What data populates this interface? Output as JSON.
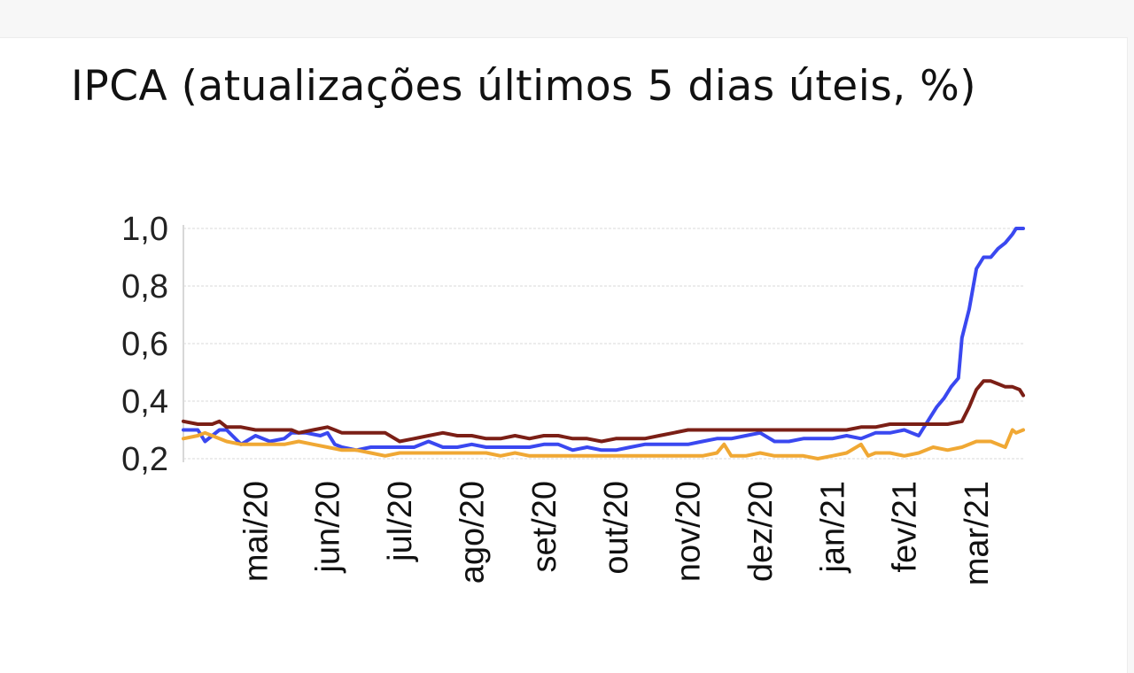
{
  "chart_data": {
    "type": "line",
    "title": "IPCA (atualizações últimos 5 dias úteis, %)",
    "xlabel": "",
    "ylabel": "",
    "ylim": [
      0.2,
      1.0
    ],
    "yticks": [
      "1,0",
      "0,8",
      "0,6",
      "0,4",
      "0,2"
    ],
    "ytick_values": [
      1.0,
      0.8,
      0.6,
      0.4,
      0.2
    ],
    "xticks": [
      "mai/20",
      "jun/20",
      "jul/20",
      "ago/20",
      "set/20",
      "out/20",
      "nov/20",
      "dez/20",
      "jan/21",
      "fev/21",
      "mar/21"
    ],
    "xtick_values": [
      1,
      2,
      3,
      4,
      5,
      6,
      7,
      8,
      9,
      10,
      11
    ],
    "xlim": [
      0,
      11.65
    ],
    "grid": true,
    "series": [
      {
        "color": "#3a48f0",
        "x": [
          0,
          0.2,
          0.3,
          0.5,
          0.6,
          0.8,
          1.0,
          1.2,
          1.4,
          1.5,
          1.7,
          1.9,
          2.0,
          2.1,
          2.2,
          2.4,
          2.6,
          2.8,
          3.0,
          3.2,
          3.4,
          3.6,
          3.8,
          4.0,
          4.2,
          4.4,
          4.6,
          4.8,
          5.0,
          5.2,
          5.4,
          5.6,
          5.8,
          6.0,
          6.2,
          6.4,
          6.6,
          6.8,
          7.0,
          7.2,
          7.4,
          7.6,
          7.8,
          8.0,
          8.2,
          8.4,
          8.6,
          8.8,
          9.0,
          9.2,
          9.4,
          9.6,
          9.8,
          10.0,
          10.1,
          10.2,
          10.3,
          10.45,
          10.55,
          10.65,
          10.75,
          10.8,
          10.9,
          11.0,
          11.1,
          11.2,
          11.3,
          11.4,
          11.5,
          11.55,
          11.65
        ],
        "y": [
          0.3,
          0.3,
          0.26,
          0.3,
          0.3,
          0.25,
          0.28,
          0.26,
          0.27,
          0.29,
          0.29,
          0.28,
          0.29,
          0.25,
          0.24,
          0.23,
          0.24,
          0.24,
          0.24,
          0.24,
          0.26,
          0.24,
          0.24,
          0.25,
          0.24,
          0.24,
          0.24,
          0.24,
          0.25,
          0.25,
          0.23,
          0.24,
          0.23,
          0.23,
          0.24,
          0.25,
          0.25,
          0.25,
          0.25,
          0.26,
          0.27,
          0.27,
          0.28,
          0.29,
          0.26,
          0.26,
          0.27,
          0.27,
          0.27,
          0.28,
          0.27,
          0.29,
          0.29,
          0.3,
          0.29,
          0.28,
          0.32,
          0.38,
          0.41,
          0.45,
          0.48,
          0.62,
          0.72,
          0.86,
          0.9,
          0.9,
          0.93,
          0.95,
          0.98,
          1.0,
          1.0
        ]
      },
      {
        "color": "#7b1f16",
        "x": [
          0,
          0.2,
          0.4,
          0.5,
          0.6,
          0.8,
          1.0,
          1.2,
          1.4,
          1.5,
          1.6,
          1.8,
          2.0,
          2.2,
          2.4,
          2.6,
          2.8,
          3.0,
          3.2,
          3.4,
          3.6,
          3.8,
          4.0,
          4.2,
          4.4,
          4.6,
          4.8,
          5.0,
          5.2,
          5.4,
          5.6,
          5.8,
          6.0,
          6.2,
          6.4,
          6.6,
          6.8,
          7.0,
          7.2,
          7.4,
          7.6,
          7.8,
          8.0,
          8.2,
          8.4,
          8.6,
          8.8,
          9.0,
          9.2,
          9.4,
          9.6,
          9.8,
          10.0,
          10.2,
          10.4,
          10.6,
          10.8,
          10.9,
          11.0,
          11.1,
          11.2,
          11.3,
          11.4,
          11.5,
          11.6,
          11.65
        ],
        "y": [
          0.33,
          0.32,
          0.32,
          0.33,
          0.31,
          0.31,
          0.3,
          0.3,
          0.3,
          0.3,
          0.29,
          0.3,
          0.31,
          0.29,
          0.29,
          0.29,
          0.29,
          0.26,
          0.27,
          0.28,
          0.29,
          0.28,
          0.28,
          0.27,
          0.27,
          0.28,
          0.27,
          0.28,
          0.28,
          0.27,
          0.27,
          0.26,
          0.27,
          0.27,
          0.27,
          0.28,
          0.29,
          0.3,
          0.3,
          0.3,
          0.3,
          0.3,
          0.3,
          0.3,
          0.3,
          0.3,
          0.3,
          0.3,
          0.3,
          0.31,
          0.31,
          0.32,
          0.32,
          0.32,
          0.32,
          0.32,
          0.33,
          0.38,
          0.44,
          0.47,
          0.47,
          0.46,
          0.45,
          0.45,
          0.44,
          0.42
        ]
      },
      {
        "color": "#f0a834",
        "x": [
          0,
          0.2,
          0.3,
          0.4,
          0.6,
          0.8,
          1.0,
          1.2,
          1.4,
          1.6,
          1.8,
          2.0,
          2.2,
          2.4,
          2.6,
          2.8,
          3.0,
          3.2,
          3.4,
          3.6,
          3.8,
          4.0,
          4.2,
          4.4,
          4.6,
          4.8,
          5.0,
          5.2,
          5.4,
          5.6,
          5.8,
          6.0,
          6.2,
          6.4,
          6.6,
          6.8,
          7.0,
          7.2,
          7.4,
          7.5,
          7.6,
          7.8,
          8.0,
          8.2,
          8.4,
          8.6,
          8.8,
          9.0,
          9.2,
          9.4,
          9.5,
          9.6,
          9.8,
          10.0,
          10.2,
          10.4,
          10.6,
          10.8,
          11.0,
          11.2,
          11.4,
          11.5,
          11.55,
          11.65
        ],
        "y": [
          0.27,
          0.28,
          0.29,
          0.28,
          0.26,
          0.25,
          0.25,
          0.25,
          0.25,
          0.26,
          0.25,
          0.24,
          0.23,
          0.23,
          0.22,
          0.21,
          0.22,
          0.22,
          0.22,
          0.22,
          0.22,
          0.22,
          0.22,
          0.21,
          0.22,
          0.21,
          0.21,
          0.21,
          0.21,
          0.21,
          0.21,
          0.21,
          0.21,
          0.21,
          0.21,
          0.21,
          0.21,
          0.21,
          0.22,
          0.25,
          0.21,
          0.21,
          0.22,
          0.21,
          0.21,
          0.21,
          0.2,
          0.21,
          0.22,
          0.25,
          0.21,
          0.22,
          0.22,
          0.21,
          0.22,
          0.24,
          0.23,
          0.24,
          0.26,
          0.26,
          0.24,
          0.3,
          0.29,
          0.3
        ]
      }
    ]
  }
}
